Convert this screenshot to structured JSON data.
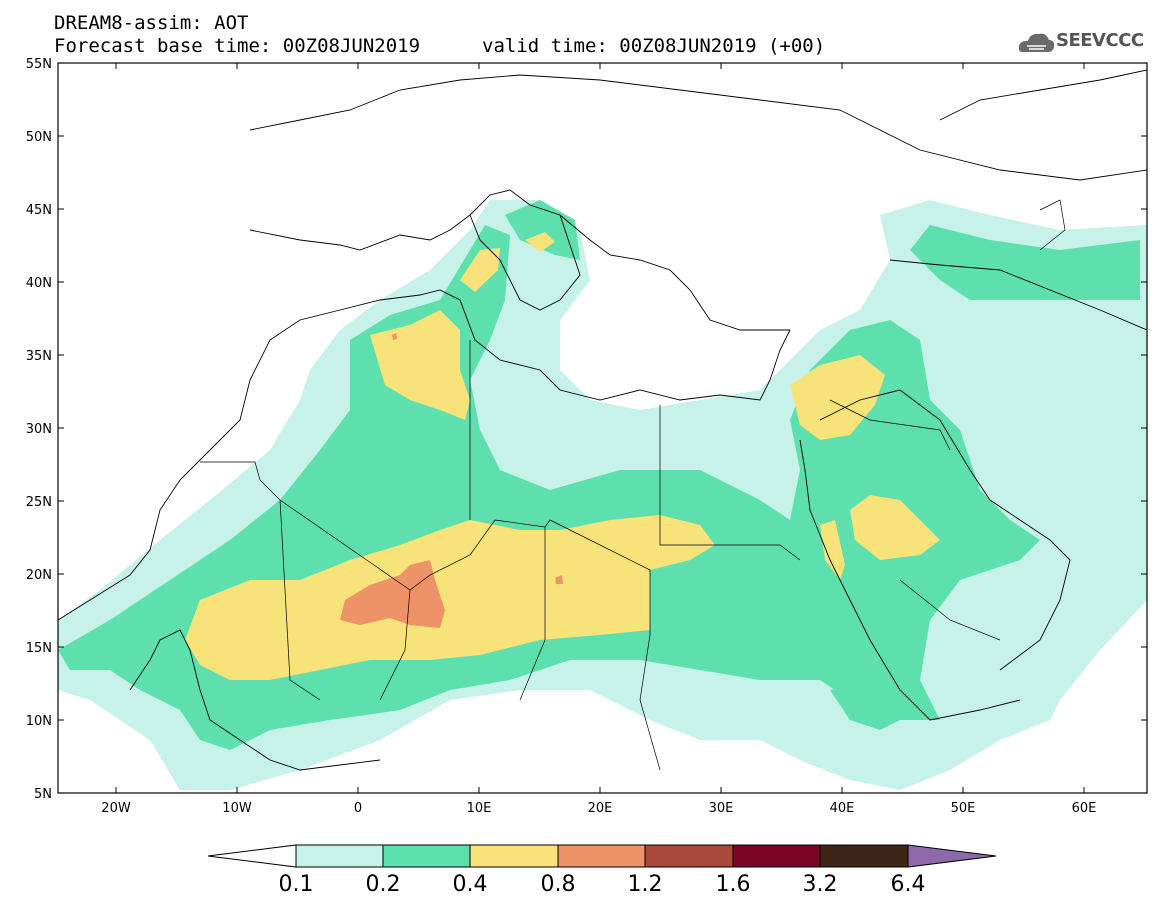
{
  "header": {
    "title": "DREAM8-assim: AOT",
    "base_time": "Forecast base time: 00Z08JUN2019",
    "valid_time": "valid time: 00Z08JUN2019 (+00)",
    "logo_text": "SEEVCCC"
  },
  "map": {
    "lat_labels": [
      "55N",
      "50N",
      "45N",
      "40N",
      "35N",
      "30N",
      "25N",
      "20N",
      "15N",
      "10N",
      "5N"
    ],
    "lon_labels": [
      "20W",
      "10W",
      "0",
      "10E",
      "20E",
      "30E",
      "40E",
      "50E",
      "60E"
    ]
  },
  "legend": {
    "levels": [
      "0.1",
      "0.2",
      "0.4",
      "0.8",
      "1.2",
      "1.6",
      "3.2",
      "6.4"
    ],
    "colors": [
      "#c6f2ea",
      "#5ddfae",
      "#f7e37a",
      "#ee9268",
      "#a9493b",
      "#7c0425",
      "#3e2617",
      "#8f68aa"
    ]
  }
}
